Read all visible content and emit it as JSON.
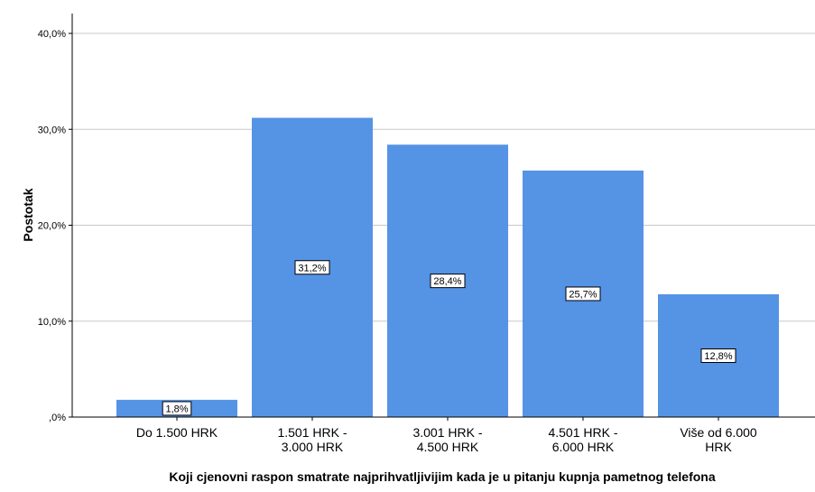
{
  "chart_data": {
    "type": "bar",
    "categories": [
      [
        "Do 1.500 HRK"
      ],
      [
        "1.501 HRK -",
        "3.000 HRK"
      ],
      [
        "3.001 HRK -",
        "4.500 HRK"
      ],
      [
        "4.501 HRK -",
        "6.000 HRK"
      ],
      [
        "Više od 6.000",
        "HRK"
      ]
    ],
    "values": [
      1.8,
      31.2,
      28.4,
      25.7,
      12.8
    ],
    "data_labels": [
      "1,8%",
      "31,2%",
      "28,4%",
      "25,7%",
      "12,8%"
    ],
    "xlabel": "Koji cjenovni raspon smatrate najprihvatljivijim kada je u pitanju kupnja pametnog telefona",
    "ylabel": "Postotak",
    "ylim": [
      0,
      40
    ],
    "yticks": [
      0,
      10,
      20,
      30,
      40
    ],
    "ytick_labels": [
      ",0%",
      "10,0%",
      "20,0%",
      "30,0%",
      "40,0%"
    ],
    "grid": true,
    "bar_color": "#5593e5"
  }
}
